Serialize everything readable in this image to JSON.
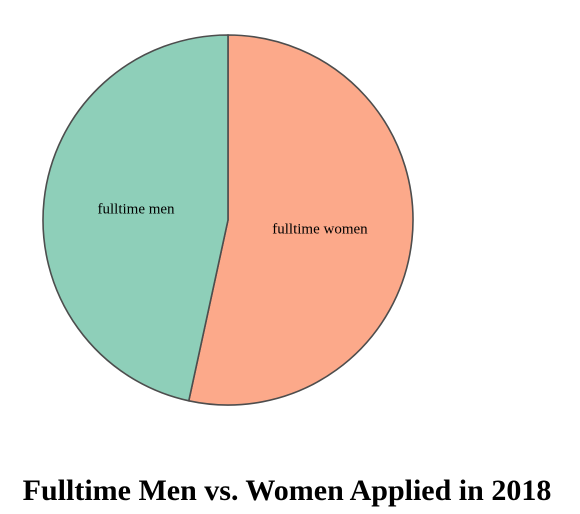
{
  "chart_data": {
    "type": "pie",
    "title": "Fulltime Men vs. Women Applied in 2018",
    "categories": [
      "fulltime women",
      "fulltime men"
    ],
    "values": [
      53.4,
      46.6
    ],
    "unit": "percent",
    "colors": [
      "#fca98a",
      "#8ecfb9"
    ],
    "stroke_color": "#4d4d4d",
    "legend": "none"
  }
}
